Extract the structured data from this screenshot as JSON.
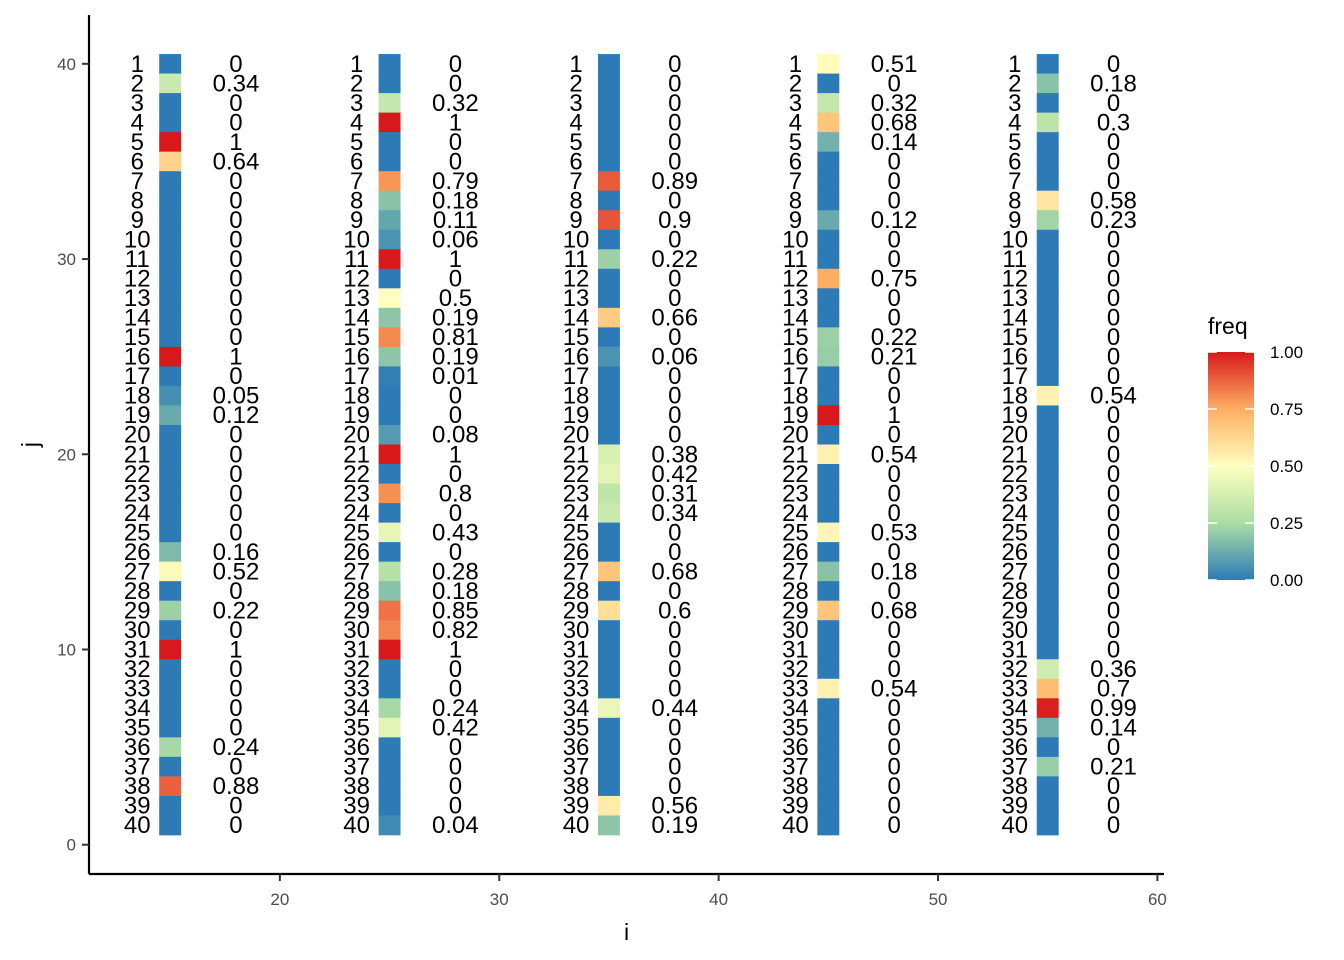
{
  "chart_data": {
    "type": "heatmap",
    "title": "",
    "xlabel": "i",
    "ylabel": "j",
    "xlim": [
      11.3,
      60.3
    ],
    "ylim": [
      -1.5,
      42.5
    ],
    "xticks": [
      20,
      30,
      40,
      50,
      60
    ],
    "yticks": [
      0,
      10,
      20,
      30,
      40
    ],
    "grid": false,
    "legend": {
      "title": "freq",
      "position": "right",
      "ticks": [
        "0.00",
        "0.25",
        "0.50",
        "0.75",
        "1.00"
      ],
      "min": 0,
      "max": 1
    },
    "colorscale": [
      "#2c7bb6",
      "#abdda4",
      "#ffffbf",
      "#fdae61",
      "#d7191c"
    ],
    "columns": [
      {
        "i": 15,
        "row_labels": [
          "1",
          "2",
          "3",
          "4",
          "5",
          "6",
          "7",
          "8",
          "9",
          "10",
          "11",
          "12",
          "13",
          "14",
          "15",
          "16",
          "17",
          "18",
          "19",
          "20",
          "21",
          "22",
          "23",
          "24",
          "25",
          "26",
          "27",
          "28",
          "29",
          "30",
          "31",
          "32",
          "33",
          "34",
          "35",
          "36",
          "37",
          "38",
          "39",
          "40"
        ],
        "freq": [
          0,
          0.34,
          0,
          0,
          1,
          0.64,
          0,
          0,
          0,
          0,
          0,
          0,
          0,
          0,
          0,
          1,
          0,
          0.05,
          0.12,
          0,
          0,
          0,
          0,
          0,
          0,
          0.16,
          0.52,
          0,
          0.22,
          0,
          1,
          0,
          0,
          0,
          0,
          0.24,
          0,
          0.88,
          0,
          0
        ]
      },
      {
        "i": 25,
        "row_labels": [
          "1",
          "2",
          "3",
          "4",
          "5",
          "6",
          "7",
          "8",
          "9",
          "10",
          "11",
          "12",
          "13",
          "14",
          "15",
          "16",
          "17",
          "18",
          "19",
          "20",
          "21",
          "22",
          "23",
          "24",
          "25",
          "26",
          "27",
          "28",
          "29",
          "30",
          "31",
          "32",
          "33",
          "34",
          "35",
          "36",
          "37",
          "38",
          "39",
          "40"
        ],
        "freq": [
          0,
          0,
          0.32,
          1,
          0,
          0,
          0.79,
          0.18,
          0.11,
          0.06,
          1,
          0,
          0.5,
          0.19,
          0.81,
          0.19,
          0.01,
          0,
          0,
          0.08,
          1,
          0,
          0.8,
          0,
          0.43,
          0,
          0.28,
          0.18,
          0.85,
          0.82,
          1,
          0,
          0,
          0.24,
          0.42,
          0,
          0,
          0,
          0,
          0.04
        ]
      },
      {
        "i": 35,
        "row_labels": [
          "1",
          "2",
          "3",
          "4",
          "5",
          "6",
          "7",
          "8",
          "9",
          "10",
          "11",
          "12",
          "13",
          "14",
          "15",
          "16",
          "17",
          "18",
          "19",
          "20",
          "21",
          "22",
          "23",
          "24",
          "25",
          "26",
          "27",
          "28",
          "29",
          "30",
          "31",
          "32",
          "33",
          "34",
          "35",
          "36",
          "37",
          "38",
          "39",
          "40"
        ],
        "freq": [
          0,
          0,
          0,
          0,
          0,
          0,
          0.89,
          0,
          0.9,
          0,
          0.22,
          0,
          0,
          0.66,
          0,
          0.06,
          0,
          0,
          0,
          0,
          0.38,
          0.42,
          0.31,
          0.34,
          0,
          0,
          0.68,
          0,
          0.6,
          0,
          0,
          0,
          0,
          0.44,
          0,
          0,
          0,
          0,
          0.56,
          0.19
        ]
      },
      {
        "i": 45,
        "row_labels": [
          "1",
          "2",
          "3",
          "4",
          "5",
          "6",
          "7",
          "8",
          "9",
          "10",
          "11",
          "12",
          "13",
          "14",
          "15",
          "16",
          "17",
          "18",
          "19",
          "20",
          "21",
          "22",
          "23",
          "24",
          "25",
          "26",
          "27",
          "28",
          "29",
          "30",
          "31",
          "32",
          "33",
          "34",
          "35",
          "36",
          "37",
          "38",
          "39",
          "40"
        ],
        "freq": [
          0.51,
          0,
          0.32,
          0.68,
          0.14,
          0,
          0,
          0,
          0.12,
          0,
          0,
          0.75,
          0,
          0,
          0.22,
          0.21,
          0,
          0,
          1,
          0,
          0.54,
          0,
          0,
          0,
          0.53,
          0,
          0.18,
          0,
          0.68,
          0,
          0,
          0,
          0.54,
          0,
          0,
          0,
          0,
          0,
          0,
          0
        ]
      },
      {
        "i": 55,
        "row_labels": [
          "1",
          "2",
          "3",
          "4",
          "5",
          "6",
          "7",
          "8",
          "9",
          "10",
          "11",
          "12",
          "13",
          "14",
          "15",
          "16",
          "17",
          "18",
          "19",
          "20",
          "21",
          "22",
          "23",
          "24",
          "25",
          "26",
          "27",
          "28",
          "29",
          "30",
          "31",
          "32",
          "33",
          "34",
          "35",
          "36",
          "37",
          "38",
          "39",
          "40"
        ],
        "freq": [
          0,
          0.18,
          0,
          0.3,
          0,
          0,
          0,
          0.58,
          0.23,
          0,
          0,
          0,
          0,
          0,
          0,
          0,
          0,
          0.54,
          0,
          0,
          0,
          0,
          0,
          0,
          0,
          0,
          0,
          0,
          0,
          0,
          0,
          0.36,
          0.7,
          0.99,
          0.14,
          0,
          0.21,
          0,
          0,
          0
        ]
      }
    ]
  }
}
